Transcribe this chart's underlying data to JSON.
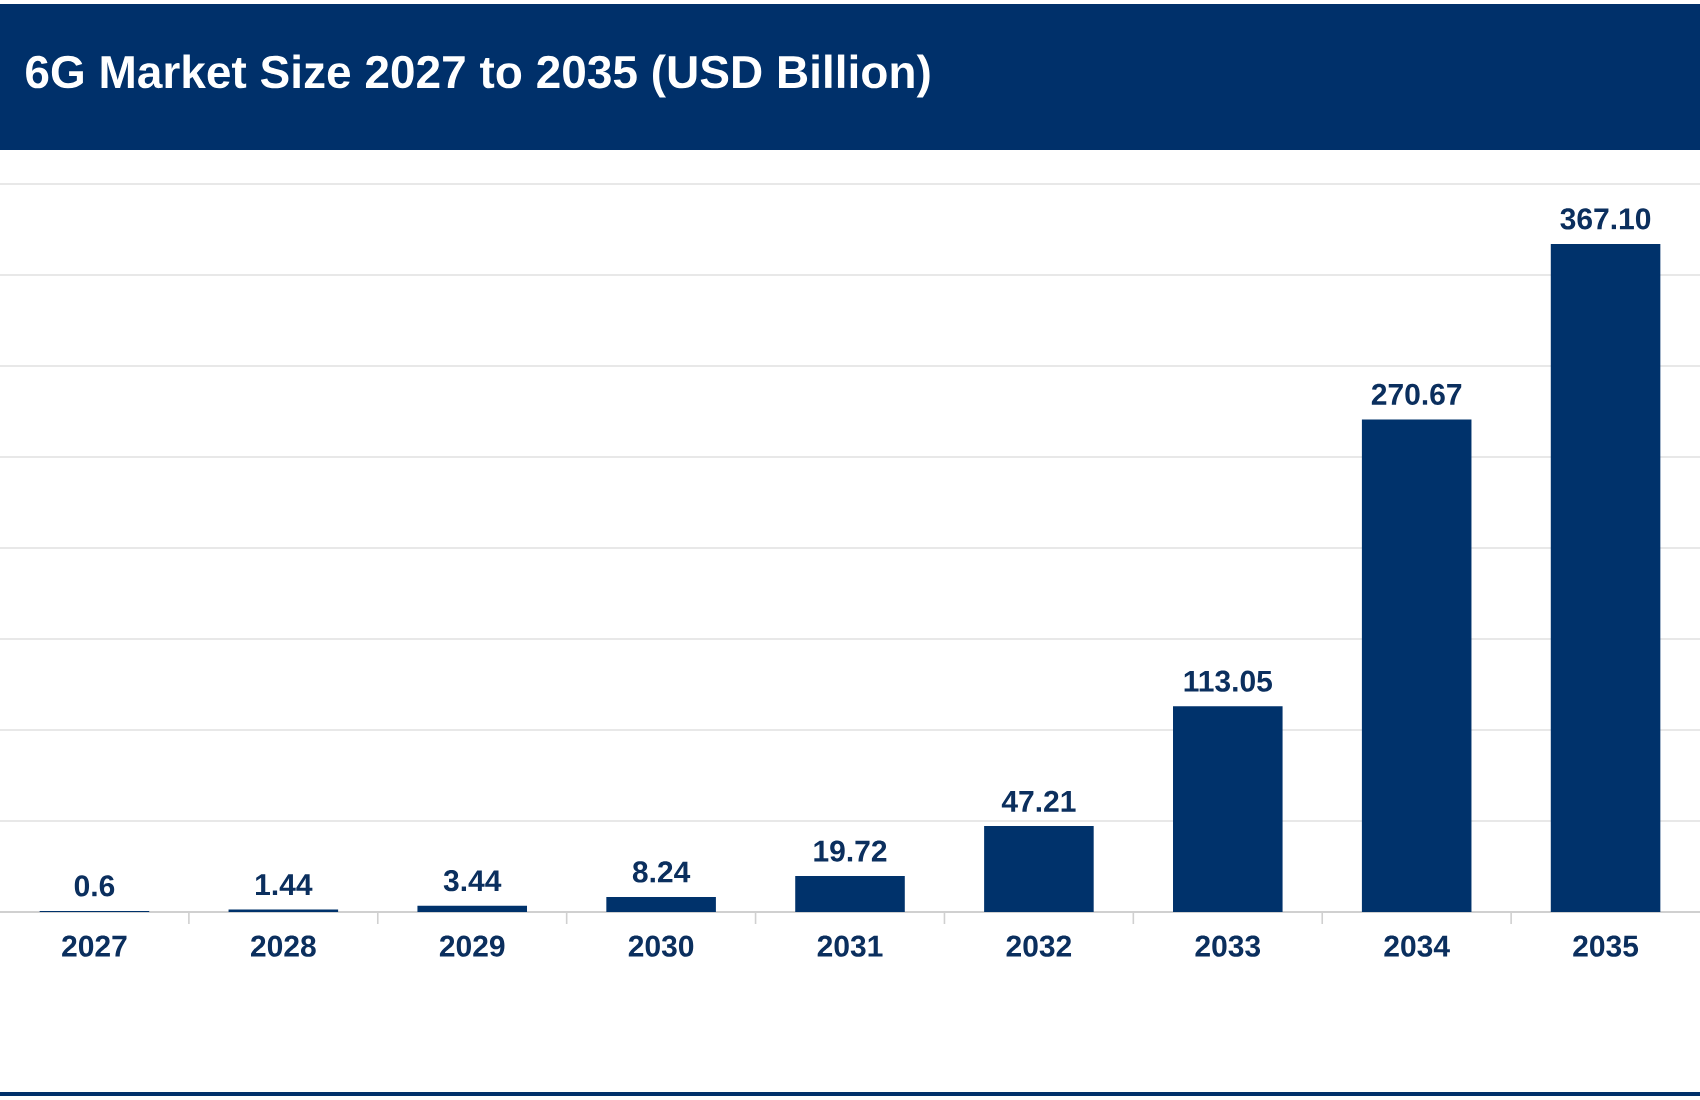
{
  "chart_data": {
    "type": "bar",
    "title": "6G Market Size 2027 to 2035 (USD Billion)",
    "categories": [
      "2027",
      "2028",
      "2029",
      "2030",
      "2031",
      "2032",
      "2033",
      "2034",
      "2035"
    ],
    "values": [
      0.6,
      1.44,
      3.44,
      8.24,
      19.72,
      47.21,
      113.05,
      270.67,
      367.1
    ],
    "value_labels": [
      "0.6",
      "1.44",
      "3.44",
      "8.24",
      "19.72",
      "47.21",
      "113.05",
      "270.67",
      "367.10"
    ],
    "color": "#00326b",
    "ylim": [
      0,
      400
    ],
    "yticks": [
      {
        "value": 0,
        "label": null
      },
      {
        "value": 50,
        "label": null
      },
      {
        "value": 100,
        "label": null
      },
      {
        "value": 150,
        "label": null
      },
      {
        "value": 200,
        "label": null
      },
      {
        "value": 250,
        "label": null
      },
      {
        "value": 300,
        "label": null
      },
      {
        "value": 350,
        "label": null
      },
      {
        "value": 400,
        "label": null
      }
    ],
    "grid": "y",
    "tick_labels": "x"
  }
}
